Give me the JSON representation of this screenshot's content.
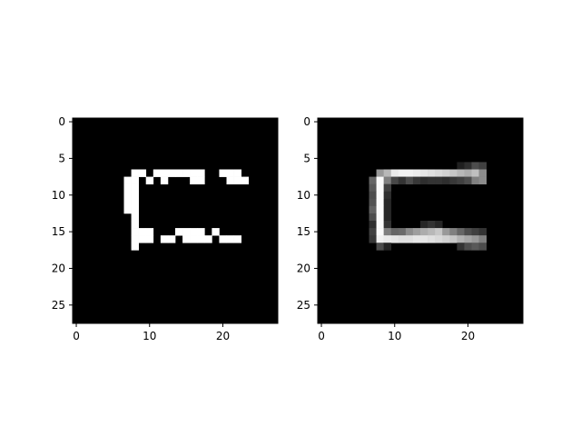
{
  "chart_data": [
    {
      "type": "heatmap",
      "colormap": "gray",
      "rows": 28,
      "cols": 28,
      "xticks": [
        0,
        10,
        20
      ],
      "yticks": [
        0,
        5,
        10,
        15,
        20,
        25
      ],
      "xlim": [
        -0.5,
        27.5
      ],
      "ylim": [
        27.5,
        -0.5
      ],
      "title": "",
      "xlabel": "",
      "ylabel": "",
      "grid": false,
      "pixels": [
        {
          "r": 7,
          "c": 8,
          "v": 1
        },
        {
          "r": 7,
          "c": 9,
          "v": 1
        },
        {
          "r": 7,
          "c": 11,
          "v": 1
        },
        {
          "r": 7,
          "c": 12,
          "v": 1
        },
        {
          "r": 7,
          "c": 13,
          "v": 1
        },
        {
          "r": 7,
          "c": 14,
          "v": 1
        },
        {
          "r": 7,
          "c": 15,
          "v": 1
        },
        {
          "r": 7,
          "c": 16,
          "v": 1
        },
        {
          "r": 7,
          "c": 17,
          "v": 1
        },
        {
          "r": 7,
          "c": 20,
          "v": 1
        },
        {
          "r": 7,
          "c": 21,
          "v": 1
        },
        {
          "r": 7,
          "c": 22,
          "v": 1
        },
        {
          "r": 8,
          "c": 7,
          "v": 1
        },
        {
          "r": 8,
          "c": 8,
          "v": 1
        },
        {
          "r": 8,
          "c": 10,
          "v": 1
        },
        {
          "r": 8,
          "c": 12,
          "v": 1
        },
        {
          "r": 8,
          "c": 16,
          "v": 1
        },
        {
          "r": 8,
          "c": 17,
          "v": 1
        },
        {
          "r": 8,
          "c": 21,
          "v": 1
        },
        {
          "r": 8,
          "c": 22,
          "v": 1
        },
        {
          "r": 8,
          "c": 23,
          "v": 1
        },
        {
          "r": 9,
          "c": 7,
          "v": 1
        },
        {
          "r": 9,
          "c": 8,
          "v": 1
        },
        {
          "r": 10,
          "c": 7,
          "v": 1
        },
        {
          "r": 10,
          "c": 8,
          "v": 1
        },
        {
          "r": 11,
          "c": 7,
          "v": 1
        },
        {
          "r": 11,
          "c": 8,
          "v": 1
        },
        {
          "r": 12,
          "c": 7,
          "v": 1
        },
        {
          "r": 12,
          "c": 8,
          "v": 1
        },
        {
          "r": 13,
          "c": 8,
          "v": 1
        },
        {
          "r": 14,
          "c": 8,
          "v": 1
        },
        {
          "r": 15,
          "c": 8,
          "v": 1
        },
        {
          "r": 15,
          "c": 9,
          "v": 1
        },
        {
          "r": 15,
          "c": 10,
          "v": 1
        },
        {
          "r": 15,
          "c": 14,
          "v": 1
        },
        {
          "r": 15,
          "c": 15,
          "v": 1
        },
        {
          "r": 15,
          "c": 16,
          "v": 1
        },
        {
          "r": 15,
          "c": 17,
          "v": 1
        },
        {
          "r": 15,
          "c": 19,
          "v": 1
        },
        {
          "r": 16,
          "c": 8,
          "v": 1
        },
        {
          "r": 16,
          "c": 9,
          "v": 1
        },
        {
          "r": 16,
          "c": 10,
          "v": 1
        },
        {
          "r": 16,
          "c": 12,
          "v": 1
        },
        {
          "r": 16,
          "c": 13,
          "v": 1
        },
        {
          "r": 16,
          "c": 15,
          "v": 1
        },
        {
          "r": 16,
          "c": 16,
          "v": 1
        },
        {
          "r": 16,
          "c": 17,
          "v": 1
        },
        {
          "r": 16,
          "c": 18,
          "v": 1
        },
        {
          "r": 16,
          "c": 20,
          "v": 1
        },
        {
          "r": 16,
          "c": 21,
          "v": 1
        },
        {
          "r": 16,
          "c": 22,
          "v": 1
        },
        {
          "r": 17,
          "c": 8,
          "v": 1
        }
      ]
    },
    {
      "type": "heatmap",
      "colormap": "gray",
      "rows": 28,
      "cols": 28,
      "xticks": [
        0,
        10,
        20
      ],
      "yticks": [
        0,
        5,
        10,
        15,
        20,
        25
      ],
      "xlim": [
        -0.5,
        27.5
      ],
      "ylim": [
        27.5,
        -0.5
      ],
      "title": "",
      "xlabel": "",
      "ylabel": "",
      "grid": false,
      "pixels": [
        {
          "r": 6,
          "c": 19,
          "v": 0.12
        },
        {
          "r": 6,
          "c": 20,
          "v": 0.18
        },
        {
          "r": 6,
          "c": 21,
          "v": 0.3
        },
        {
          "r": 6,
          "c": 22,
          "v": 0.25
        },
        {
          "r": 7,
          "c": 8,
          "v": 0.6
        },
        {
          "r": 7,
          "c": 9,
          "v": 0.72
        },
        {
          "r": 7,
          "c": 10,
          "v": 0.92
        },
        {
          "r": 7,
          "c": 11,
          "v": 0.95
        },
        {
          "r": 7,
          "c": 12,
          "v": 0.95
        },
        {
          "r": 7,
          "c": 13,
          "v": 0.93
        },
        {
          "r": 7,
          "c": 14,
          "v": 0.9
        },
        {
          "r": 7,
          "c": 15,
          "v": 0.88
        },
        {
          "r": 7,
          "c": 16,
          "v": 0.85
        },
        {
          "r": 7,
          "c": 17,
          "v": 0.82
        },
        {
          "r": 7,
          "c": 18,
          "v": 0.78
        },
        {
          "r": 7,
          "c": 19,
          "v": 0.72
        },
        {
          "r": 7,
          "c": 20,
          "v": 0.68
        },
        {
          "r": 7,
          "c": 21,
          "v": 0.75
        },
        {
          "r": 7,
          "c": 22,
          "v": 0.55
        },
        {
          "r": 8,
          "c": 7,
          "v": 0.4
        },
        {
          "r": 8,
          "c": 8,
          "v": 0.98
        },
        {
          "r": 8,
          "c": 9,
          "v": 0.5
        },
        {
          "r": 8,
          "c": 10,
          "v": 0.28
        },
        {
          "r": 8,
          "c": 11,
          "v": 0.2
        },
        {
          "r": 8,
          "c": 12,
          "v": 0.3
        },
        {
          "r": 8,
          "c": 13,
          "v": 0.22
        },
        {
          "r": 8,
          "c": 14,
          "v": 0.18
        },
        {
          "r": 8,
          "c": 15,
          "v": 0.2
        },
        {
          "r": 8,
          "c": 16,
          "v": 0.2
        },
        {
          "r": 8,
          "c": 17,
          "v": 0.18
        },
        {
          "r": 8,
          "c": 18,
          "v": 0.22
        },
        {
          "r": 8,
          "c": 19,
          "v": 0.25
        },
        {
          "r": 8,
          "c": 20,
          "v": 0.3
        },
        {
          "r": 8,
          "c": 21,
          "v": 0.5
        },
        {
          "r": 8,
          "c": 22,
          "v": 0.55
        },
        {
          "r": 9,
          "c": 7,
          "v": 0.35
        },
        {
          "r": 9,
          "c": 8,
          "v": 0.98
        },
        {
          "r": 9,
          "c": 9,
          "v": 0.25
        },
        {
          "r": 10,
          "c": 7,
          "v": 0.3
        },
        {
          "r": 10,
          "c": 8,
          "v": 0.98
        },
        {
          "r": 10,
          "c": 9,
          "v": 0.18
        },
        {
          "r": 11,
          "c": 7,
          "v": 0.32
        },
        {
          "r": 11,
          "c": 8,
          "v": 0.98
        },
        {
          "r": 11,
          "c": 9,
          "v": 0.15
        },
        {
          "r": 12,
          "c": 7,
          "v": 0.38
        },
        {
          "r": 12,
          "c": 8,
          "v": 0.98
        },
        {
          "r": 12,
          "c": 9,
          "v": 0.15
        },
        {
          "r": 13,
          "c": 7,
          "v": 0.3
        },
        {
          "r": 13,
          "c": 8,
          "v": 0.98
        },
        {
          "r": 13,
          "c": 9,
          "v": 0.15
        },
        {
          "r": 14,
          "c": 7,
          "v": 0.18
        },
        {
          "r": 14,
          "c": 8,
          "v": 0.98
        },
        {
          "r": 14,
          "c": 9,
          "v": 0.2
        },
        {
          "r": 14,
          "c": 14,
          "v": 0.15
        },
        {
          "r": 14,
          "c": 15,
          "v": 0.2
        },
        {
          "r": 14,
          "c": 16,
          "v": 0.15
        },
        {
          "r": 15,
          "c": 7,
          "v": 0.25
        },
        {
          "r": 15,
          "c": 8,
          "v": 0.98
        },
        {
          "r": 15,
          "c": 9,
          "v": 0.5
        },
        {
          "r": 15,
          "c": 10,
          "v": 0.4
        },
        {
          "r": 15,
          "c": 11,
          "v": 0.42
        },
        {
          "r": 15,
          "c": 12,
          "v": 0.55
        },
        {
          "r": 15,
          "c": 13,
          "v": 0.62
        },
        {
          "r": 15,
          "c": 14,
          "v": 0.68
        },
        {
          "r": 15,
          "c": 15,
          "v": 0.72
        },
        {
          "r": 15,
          "c": 16,
          "v": 0.78
        },
        {
          "r": 15,
          "c": 17,
          "v": 0.6
        },
        {
          "r": 15,
          "c": 18,
          "v": 0.5
        },
        {
          "r": 15,
          "c": 19,
          "v": 0.4
        },
        {
          "r": 15,
          "c": 20,
          "v": 0.3
        },
        {
          "r": 15,
          "c": 21,
          "v": 0.25
        },
        {
          "r": 15,
          "c": 22,
          "v": 0.2
        },
        {
          "r": 16,
          "c": 7,
          "v": 0.22
        },
        {
          "r": 16,
          "c": 8,
          "v": 0.95
        },
        {
          "r": 16,
          "c": 9,
          "v": 0.92
        },
        {
          "r": 16,
          "c": 10,
          "v": 0.9
        },
        {
          "r": 16,
          "c": 11,
          "v": 0.88
        },
        {
          "r": 16,
          "c": 12,
          "v": 0.88
        },
        {
          "r": 16,
          "c": 13,
          "v": 0.9
        },
        {
          "r": 16,
          "c": 14,
          "v": 0.9
        },
        {
          "r": 16,
          "c": 15,
          "v": 0.88
        },
        {
          "r": 16,
          "c": 16,
          "v": 0.85
        },
        {
          "r": 16,
          "c": 17,
          "v": 0.82
        },
        {
          "r": 16,
          "c": 18,
          "v": 0.78
        },
        {
          "r": 16,
          "c": 19,
          "v": 0.7
        },
        {
          "r": 16,
          "c": 20,
          "v": 0.65
        },
        {
          "r": 16,
          "c": 21,
          "v": 0.6
        },
        {
          "r": 16,
          "c": 22,
          "v": 0.5
        },
        {
          "r": 17,
          "c": 8,
          "v": 0.3
        },
        {
          "r": 17,
          "c": 9,
          "v": 0.15
        },
        {
          "r": 17,
          "c": 19,
          "v": 0.2
        },
        {
          "r": 17,
          "c": 20,
          "v": 0.3
        },
        {
          "r": 17,
          "c": 21,
          "v": 0.35
        },
        {
          "r": 17,
          "c": 22,
          "v": 0.3
        }
      ]
    }
  ]
}
